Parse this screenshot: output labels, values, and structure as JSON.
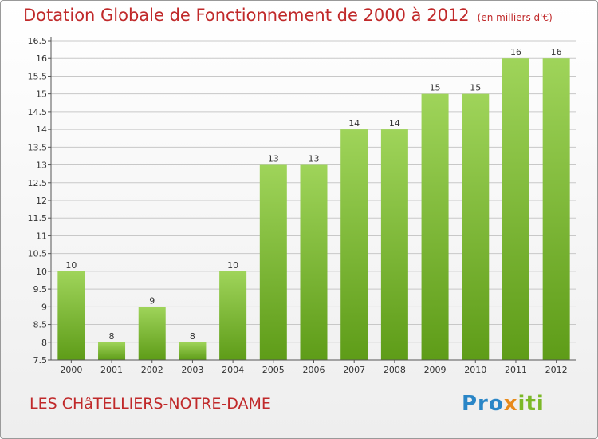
{
  "header": {
    "title": "Dotation Globale de Fonctionnement de 2000 à 2012",
    "subtitle": "(en milliers d'€)"
  },
  "footer": {
    "city": "LES CHâTELLIERS-NOTRE-DAME",
    "logo": "Proxiti"
  },
  "colors": {
    "title": "#c0292a",
    "bar_light": "#9fd45a",
    "bar_dark": "#5e9c18",
    "grid": "#c8c8c8"
  },
  "chart_data": {
    "type": "bar",
    "categories": [
      "2000",
      "2001",
      "2002",
      "2003",
      "2004",
      "2005",
      "2006",
      "2007",
      "2008",
      "2009",
      "2010",
      "2011",
      "2012"
    ],
    "values": [
      10,
      8,
      9,
      8,
      10,
      13,
      13,
      14,
      14,
      15,
      15,
      16,
      16
    ],
    "labels": [
      "10",
      "8",
      "9",
      "8",
      "10",
      "13",
      "13",
      "14",
      "14",
      "15",
      "15",
      "16",
      "16"
    ],
    "ylim": [
      7.5,
      16.5
    ],
    "yticks": [
      7.5,
      8,
      8.5,
      9,
      9.5,
      10,
      10.5,
      11,
      11.5,
      12,
      12.5,
      13,
      13.5,
      14,
      14.5,
      15,
      15.5,
      16,
      16.5
    ],
    "grid": true
  }
}
